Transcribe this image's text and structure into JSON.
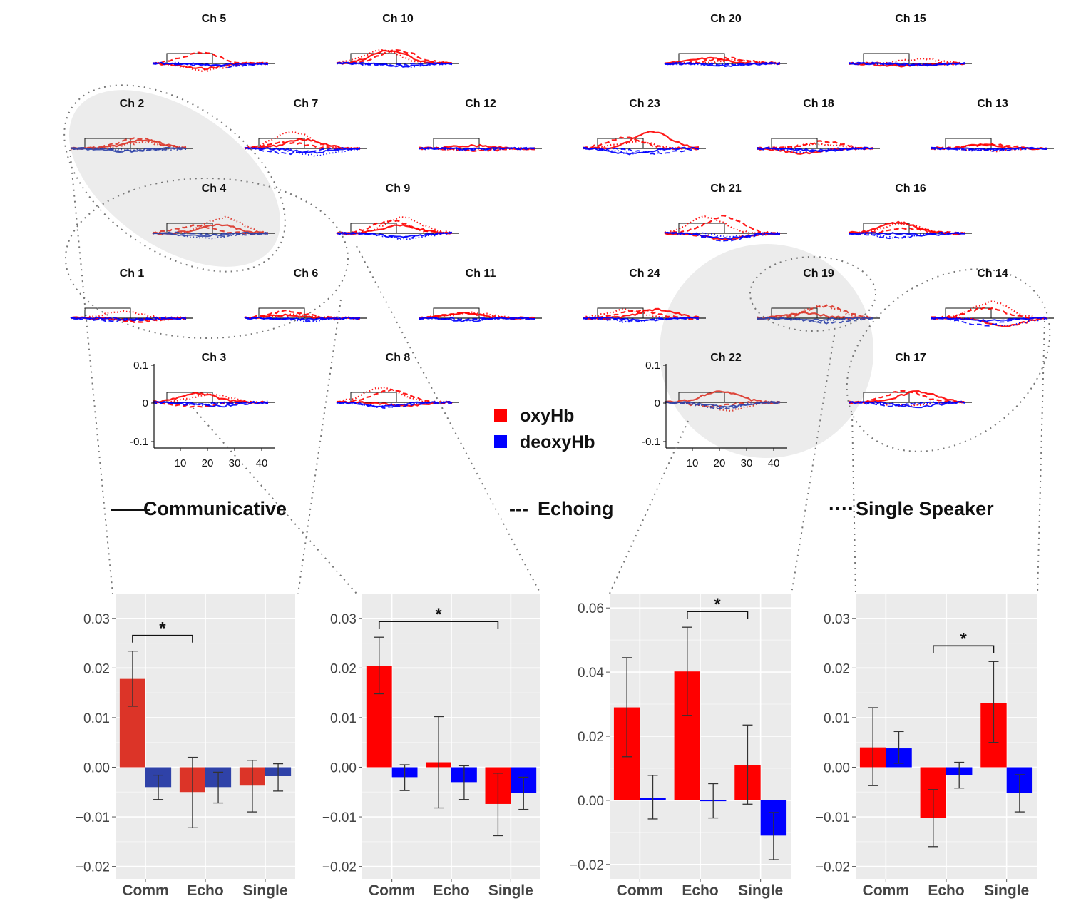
{
  "colors": {
    "oxy": "#ff0000",
    "deoxy": "#0000ff",
    "oxy_muted": "#dc3428",
    "deoxy_muted": "#2f42a8",
    "highlight": "#ececec",
    "panel_bg": "#ebebeb"
  },
  "channels": [
    {
      "name": "Ch 5",
      "id": 5,
      "highlighted": false
    },
    {
      "name": "Ch 10",
      "id": 10,
      "highlighted": false
    },
    {
      "name": "Ch 20",
      "id": 20,
      "highlighted": false
    },
    {
      "name": "Ch 15",
      "id": 15,
      "highlighted": false
    },
    {
      "name": "Ch 2",
      "id": 2,
      "highlighted": true
    },
    {
      "name": "Ch 7",
      "id": 7,
      "highlighted": false
    },
    {
      "name": "Ch 12",
      "id": 12,
      "highlighted": false
    },
    {
      "name": "Ch 23",
      "id": 23,
      "highlighted": false
    },
    {
      "name": "Ch 18",
      "id": 18,
      "highlighted": false
    },
    {
      "name": "Ch 13",
      "id": 13,
      "highlighted": false
    },
    {
      "name": "Ch 4",
      "id": 4,
      "highlighted": true
    },
    {
      "name": "Ch 9",
      "id": 9,
      "highlighted": false
    },
    {
      "name": "Ch 21",
      "id": 21,
      "highlighted": false
    },
    {
      "name": "Ch 16",
      "id": 16,
      "highlighted": false
    },
    {
      "name": "Ch 1",
      "id": 1,
      "highlighted": false
    },
    {
      "name": "Ch 6",
      "id": 6,
      "highlighted": false
    },
    {
      "name": "Ch 11",
      "id": 11,
      "highlighted": false
    },
    {
      "name": "Ch 24",
      "id": 24,
      "highlighted": false
    },
    {
      "name": "Ch 19",
      "id": 19,
      "highlighted": true
    },
    {
      "name": "Ch 14",
      "id": 14,
      "highlighted": false
    },
    {
      "name": "Ch 3",
      "id": 3,
      "highlighted": false
    },
    {
      "name": "Ch 8",
      "id": 8,
      "highlighted": false
    },
    {
      "name": "Ch 22",
      "id": 22,
      "highlighted": true
    },
    {
      "name": "Ch 17",
      "id": 17,
      "highlighted": false
    }
  ],
  "timecourse_axis": {
    "y_ticks": [
      "0.1",
      "0",
      "-0.1"
    ],
    "x_ticks": [
      "10",
      "20",
      "30",
      "40"
    ]
  },
  "legend": [
    {
      "label": "oxyHb",
      "color": "#ff0000"
    },
    {
      "label": "deoxyHb",
      "color": "#0000ff"
    }
  ],
  "conditions": [
    {
      "line": "——",
      "label": "Communicative"
    },
    {
      "line": "---",
      "label": "Echoing"
    },
    {
      "line": "····",
      "label": "Single Speaker"
    }
  ],
  "chart_data": [
    {
      "type": "bar",
      "categories": [
        "Comm",
        "Echo",
        "Single"
      ],
      "series": [
        {
          "name": "oxyHb",
          "values": [
            0.0178,
            -0.005,
            -0.0037
          ],
          "err_low": [
            0.0123,
            -0.0122,
            -0.009
          ],
          "err_high": [
            0.0234,
            0.002,
            0.0014
          ]
        },
        {
          "name": "deoxyHb",
          "values": [
            -0.004,
            -0.004,
            -0.0018
          ],
          "err_low": [
            -0.0065,
            -0.0072,
            -0.0048
          ],
          "err_high": [
            -0.0016,
            -0.001,
            0.0007
          ]
        }
      ],
      "ylim": [
        -0.0225,
        0.035
      ],
      "y_ticks": [
        "0.03",
        "0.02",
        "0.01",
        "0.00",
        "−0.01",
        "−0.02"
      ],
      "y_tick_values": [
        0.03,
        0.02,
        0.01,
        0.0,
        -0.01,
        -0.02
      ],
      "significance": {
        "from": 0,
        "to": 1,
        "label": "*"
      },
      "muted": true
    },
    {
      "type": "bar",
      "categories": [
        "Comm",
        "Echo",
        "Single"
      ],
      "series": [
        {
          "name": "oxyHb",
          "values": [
            0.0204,
            0.001,
            -0.0074
          ],
          "err_low": [
            0.0148,
            -0.0082,
            -0.0138
          ],
          "err_high": [
            0.0262,
            0.0102,
            -0.0012
          ]
        },
        {
          "name": "deoxyHb",
          "values": [
            -0.002,
            -0.003,
            -0.0052
          ],
          "err_low": [
            -0.0047,
            -0.0065,
            -0.0085
          ],
          "err_high": [
            0.0005,
            0.0003,
            -0.002
          ]
        }
      ],
      "ylim": [
        -0.0225,
        0.035
      ],
      "y_ticks": [
        "0.03",
        "0.02",
        "0.01",
        "0.00",
        "−0.01",
        "−0.02"
      ],
      "y_tick_values": [
        0.03,
        0.02,
        0.01,
        0.0,
        -0.01,
        -0.02
      ],
      "significance": {
        "from": 0,
        "to": 2,
        "label": "*"
      },
      "muted": false
    },
    {
      "type": "bar",
      "categories": [
        "Comm",
        "Echo",
        "Single"
      ],
      "series": [
        {
          "name": "oxyHb",
          "values": [
            0.029,
            0.0402,
            0.011
          ],
          "err_low": [
            0.0136,
            0.0265,
            -0.0012
          ],
          "err_high": [
            0.0445,
            0.054,
            0.0235
          ]
        },
        {
          "name": "deoxyHb",
          "values": [
            0.0008,
            -0.0002,
            -0.011
          ],
          "err_low": [
            -0.0058,
            -0.0055,
            -0.0185
          ],
          "err_high": [
            0.0078,
            0.0052,
            -0.0038
          ]
        }
      ],
      "ylim": [
        -0.0245,
        0.0645
      ],
      "y_ticks": [
        "0.06",
        "0.04",
        "0.02",
        "0.00",
        "−0.02"
      ],
      "y_tick_values": [
        0.06,
        0.04,
        0.02,
        0.0,
        -0.02
      ],
      "significance": {
        "from": 1,
        "to": 2,
        "label": "*"
      },
      "muted": false
    },
    {
      "type": "bar",
      "categories": [
        "Comm",
        "Echo",
        "Single"
      ],
      "series": [
        {
          "name": "oxyHb",
          "values": [
            0.004,
            -0.0102,
            0.013
          ],
          "err_low": [
            -0.0037,
            -0.016,
            0.005
          ],
          "err_high": [
            0.012,
            -0.0045,
            0.0213
          ]
        },
        {
          "name": "deoxyHb",
          "values": [
            0.0038,
            -0.0016,
            -0.0052
          ],
          "err_low": [
            0.0008,
            -0.0042,
            -0.009
          ],
          "err_high": [
            0.0072,
            0.001,
            -0.0015
          ]
        }
      ],
      "ylim": [
        -0.0225,
        0.035
      ],
      "y_ticks": [
        "0.03",
        "0.02",
        "0.01",
        "0.00",
        "−0.01",
        "−0.02"
      ],
      "y_tick_values": [
        0.03,
        0.02,
        0.01,
        0.0,
        -0.01,
        -0.02
      ],
      "significance": {
        "from": 1,
        "to": 2,
        "label": "*"
      },
      "muted": false
    }
  ]
}
